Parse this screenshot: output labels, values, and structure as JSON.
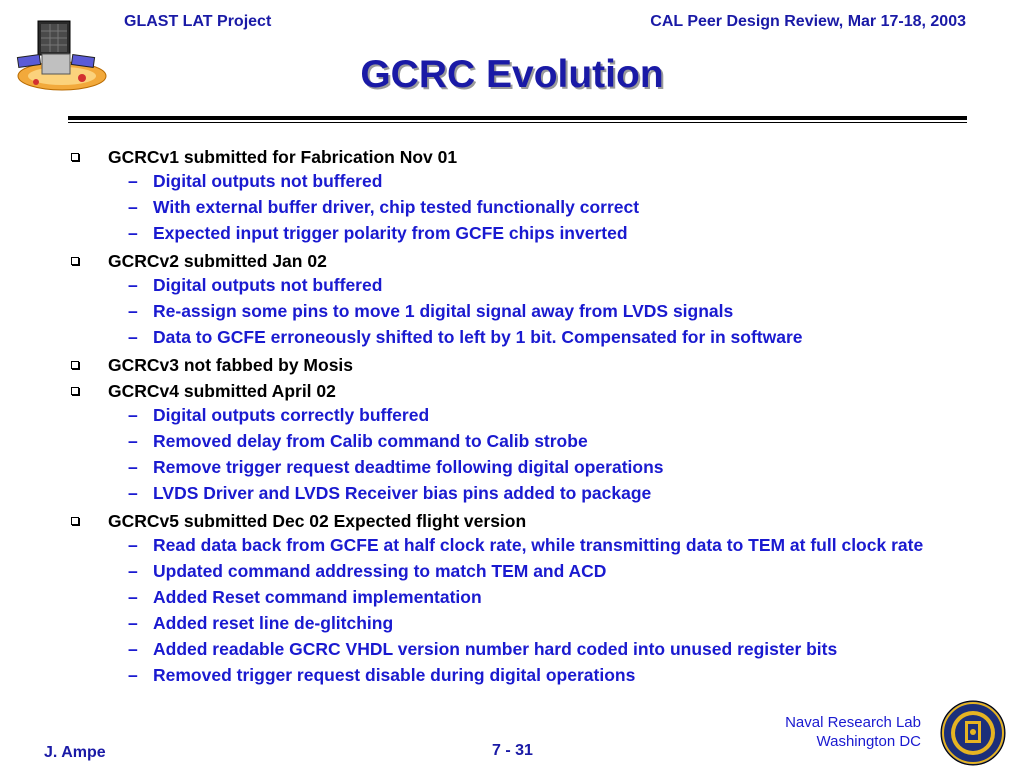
{
  "header": {
    "project": "GLAST LAT Project",
    "event": "CAL Peer Design Review, Mar 17-18, 2003"
  },
  "title": "GCRC Evolution",
  "items": [
    {
      "text": "GCRCv1 submitted for Fabrication Nov 01",
      "subs": [
        "Digital outputs not buffered",
        "With external buffer driver, chip tested functionally correct",
        "Expected input trigger polarity from GCFE chips inverted"
      ]
    },
    {
      "text": "GCRCv2 submitted Jan 02",
      "subs": [
        "Digital outputs not buffered",
        "Re-assign some pins to move 1 digital signal away from LVDS signals",
        "Data to GCFE erroneously shifted to left by 1 bit.  Compensated for in software"
      ]
    },
    {
      "text": "GCRCv3 not fabbed by Mosis",
      "subs": []
    },
    {
      "text": "GCRCv4 submitted April 02",
      "subs": [
        "Digital outputs correctly buffered",
        "Removed delay from Calib command to Calib strobe",
        "Remove trigger request deadtime following digital operations",
        "LVDS Driver and LVDS Receiver bias pins added to package"
      ]
    },
    {
      "text": "GCRCv5 submitted Dec 02  Expected flight version",
      "subs": [
        "Read data back from GCFE at half clock rate, while transmitting data to TEM at full clock rate",
        "Updated command addressing to match TEM and ACD",
        "Added Reset command implementation",
        "Added reset line de-glitching",
        "Added readable GCRC VHDL version number hard coded into unused register bits",
        "Removed trigger request disable during digital operations"
      ]
    }
  ],
  "footer": {
    "lab_line1": "Naval Research Lab",
    "lab_line2": "Washington DC",
    "author": "J. Ampe",
    "page": "7 - 31"
  },
  "logos": {
    "left": "glast-satellite-logo",
    "right": "naval-research-laboratory-seal"
  }
}
